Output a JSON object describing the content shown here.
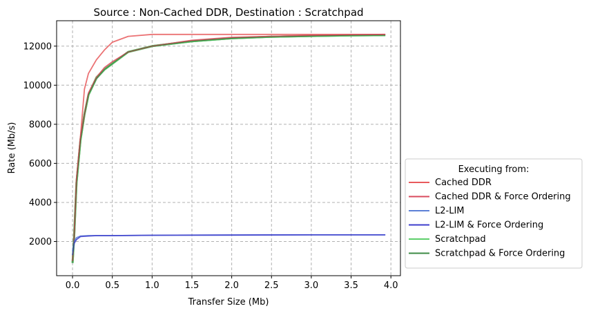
{
  "chart_data": {
    "type": "line",
    "title": "Source : Non-Cached DDR, Destination : Scratchpad",
    "xlabel": "Transfer Size (Mb)",
    "ylabel": "Rate (Mb/s)",
    "xlim": [
      -0.2,
      4.12
    ],
    "ylim": [
      250,
      13300
    ],
    "xticks": [
      0.0,
      0.5,
      1.0,
      1.5,
      2.0,
      2.5,
      3.0,
      3.5,
      4.0
    ],
    "xtick_labels": [
      "0.0",
      "0.5",
      "1.0",
      "1.5",
      "2.0",
      "2.5",
      "3.0",
      "3.5",
      "4.0"
    ],
    "yticks": [
      2000,
      4000,
      6000,
      8000,
      10000,
      12000
    ],
    "ytick_labels": [
      "2000",
      "4000",
      "6000",
      "8000",
      "10000",
      "12000"
    ],
    "grid": true,
    "legend_title": "Executing from:",
    "legend_location": "outside right, lower",
    "series": [
      {
        "name": "Cached DDR",
        "color": "#e8595c",
        "x": [
          0.0,
          0.02,
          0.05,
          0.1,
          0.15,
          0.2,
          0.3,
          0.4,
          0.5,
          0.7,
          1.0,
          1.5,
          2.0,
          2.5,
          3.0,
          3.5,
          3.93
        ],
        "values": [
          1000,
          2300,
          5200,
          7400,
          9800,
          10600,
          11300,
          11800,
          12200,
          12500,
          12600,
          12600,
          12600,
          12600,
          12600,
          12600,
          12600
        ]
      },
      {
        "name": "Cached DDR & Force Ordering",
        "color": "#d94a5c",
        "x": [
          0.0,
          0.02,
          0.05,
          0.1,
          0.15,
          0.2,
          0.3,
          0.4,
          0.5,
          0.7,
          1.0,
          1.5,
          2.0,
          2.5,
          3.0,
          3.5,
          3.93
        ],
        "values": [
          1000,
          2250,
          5100,
          7300,
          8500,
          9600,
          10400,
          10900,
          11200,
          11700,
          12000,
          12300,
          12450,
          12500,
          12550,
          12580,
          12600
        ]
      },
      {
        "name": "L2-LIM",
        "color": "#5b7fd6",
        "x": [
          0.0,
          0.02,
          0.05,
          0.1,
          0.2,
          0.3,
          0.5,
          1.0,
          2.0,
          3.0,
          3.93
        ],
        "values": [
          1500,
          2000,
          2200,
          2280,
          2300,
          2300,
          2300,
          2320,
          2330,
          2340,
          2340
        ]
      },
      {
        "name": "L2-LIM & Force Ordering",
        "color": "#3d3dcc",
        "x": [
          0.0,
          0.02,
          0.05,
          0.1,
          0.2,
          0.3,
          0.5,
          1.0,
          2.0,
          3.0,
          3.93
        ],
        "values": [
          1300,
          1900,
          2100,
          2250,
          2280,
          2300,
          2300,
          2320,
          2330,
          2340,
          2340
        ]
      },
      {
        "name": "Scratchpad",
        "color": "#5ccf6a",
        "x": [
          0.0,
          0.02,
          0.05,
          0.1,
          0.15,
          0.2,
          0.3,
          0.4,
          0.5,
          0.7,
          1.0,
          1.5,
          2.0,
          2.5,
          3.0,
          3.5,
          3.93
        ],
        "values": [
          900,
          2300,
          5000,
          7200,
          8500,
          9500,
          10400,
          10800,
          11100,
          11700,
          12000,
          12250,
          12400,
          12480,
          12520,
          12550,
          12560
        ]
      },
      {
        "name": "Scratchpad & Force Ordering",
        "color": "#3c8a44",
        "x": [
          0.0,
          0.02,
          0.05,
          0.1,
          0.15,
          0.2,
          0.3,
          0.4,
          0.5,
          0.7,
          1.0,
          1.5,
          2.0,
          2.5,
          3.0,
          3.5,
          3.93
        ],
        "values": [
          900,
          2250,
          5000,
          7200,
          8500,
          9500,
          10350,
          10800,
          11100,
          11700,
          12000,
          12250,
          12400,
          12480,
          12520,
          12550,
          12560
        ]
      }
    ]
  }
}
